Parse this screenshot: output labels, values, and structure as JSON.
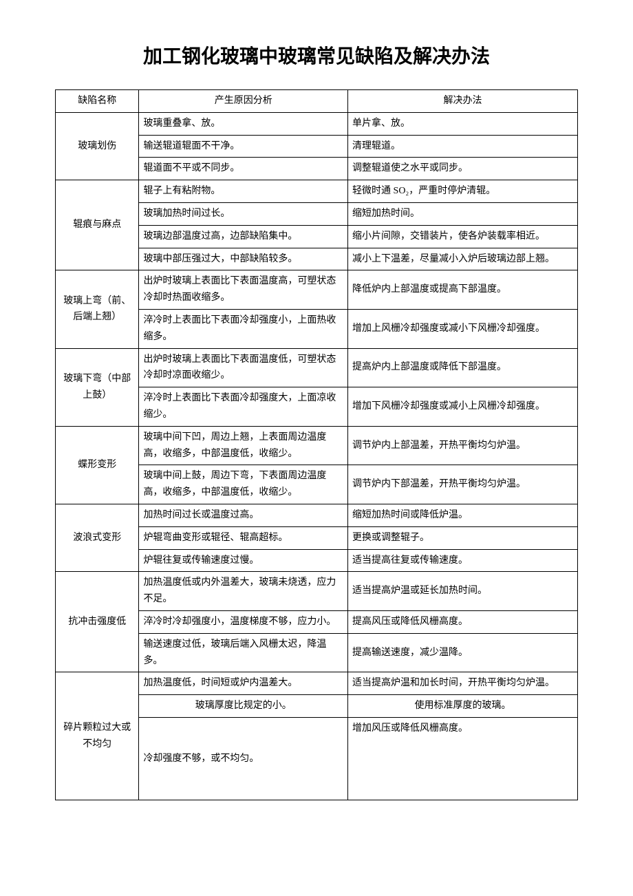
{
  "title": "加工钢化玻璃中玻璃常见缺陷及解决办法",
  "headers": {
    "name": "缺陷名称",
    "cause": "产生原因分析",
    "solution": "解决办法"
  },
  "defects": [
    {
      "name": "玻璃划伤",
      "rows": [
        {
          "cause": "玻璃重叠拿、放。",
          "solution": "单片拿、放。"
        },
        {
          "cause": "输送辊道辊面不干净。",
          "solution": "清理辊道。"
        },
        {
          "cause": "辊道面不平或不同步。",
          "solution": "调整辊道使之水平或同步。"
        }
      ]
    },
    {
      "name": "辊痕与麻点",
      "rows": [
        {
          "cause": "辊子上有粘附物。",
          "solution": "轻微时通 SO₂，严重时停炉清辊。"
        },
        {
          "cause": "玻璃加热时间过长。",
          "solution": "缩短加热时间。"
        },
        {
          "cause": "玻璃边部温度过高，边部缺陷集中。",
          "solution": "缩小片间隙，交错装片，使各炉装载率相近。"
        },
        {
          "cause": "玻璃中部压强过大，中部缺陷较多。",
          "solution": "减小上下温差，尽量减小入炉后玻璃边部上翘。"
        }
      ]
    },
    {
      "name": "玻璃上弯（前、后端上翘）",
      "rows": [
        {
          "cause": "出炉时玻璃上表面比下表面温度高，可塑状态冷却时热面收缩多。",
          "solution": "降低炉内上部温度或提高下部温度。"
        },
        {
          "cause": "淬冷时上表面比下表面冷却强度小，上面热收缩多。",
          "solution": "增加上风栅冷却强度或减小下风栅冷却强度。"
        }
      ]
    },
    {
      "name": "玻璃下弯（中部上鼓）",
      "rows": [
        {
          "cause": "出炉时玻璃上表面比下表面温度低，可塑状态冷却时凉面收缩少。",
          "solution": "提高炉内上部温度或降低下部温度。"
        },
        {
          "cause": "淬冷时上表面比下表面冷却强度大，上面凉收缩少。",
          "solution": "增加下风栅冷却强度或减小上风栅冷却强度。"
        }
      ]
    },
    {
      "name": "蝶形变形",
      "rows": [
        {
          "cause": "玻璃中间下凹，周边上翘，上表面周边温度高，收缩多，中部温度低，收缩少。",
          "solution": "调节炉内上部温差，开热平衡均匀炉温。"
        },
        {
          "cause": "玻璃中间上鼓，周边下弯，下表面周边温度高，收缩多，中部温度低，收缩少。",
          "solution": "调节炉内下部温差，开热平衡均匀炉温。"
        }
      ]
    },
    {
      "name": "波浪式变形",
      "rows": [
        {
          "cause": "加热时间过长或温度过高。",
          "solution": "缩短加热时间或降低炉温。"
        },
        {
          "cause": "炉辊弯曲变形或辊径、辊高超标。",
          "solution": "更换或调整辊子。"
        },
        {
          "cause": "炉辊往复或传输速度过慢。",
          "solution": "适当提高往复或传输速度。"
        }
      ]
    },
    {
      "name": "抗冲击强度低",
      "rows": [
        {
          "cause": "加热温度低或内外温差大，玻璃未烧透，应力不足。",
          "solution": "适当提高炉温或延长加热时间。"
        },
        {
          "cause": "淬冷时冷却强度小，温度梯度不够，应力小。",
          "solution": "提高风压或降低风栅高度。"
        },
        {
          "cause": "输送速度过低，玻璃后端入风栅太迟，降温多。",
          "solution": "提高输送速度，减少温降。"
        }
      ]
    },
    {
      "name": "碎片颗粒过大或不均匀",
      "rows": [
        {
          "cause": "加热温度低，时间短或炉内温差大。",
          "solution": "适当提高炉温和加长时间，开热平衡均匀炉温。"
        },
        {
          "cause": "玻璃厚度比规定的小。",
          "solution": "使用标准厚度的玻璃。",
          "center": true
        },
        {
          "cause": "冷却强度不够，或不均匀。",
          "solution": "增加风压或降低风栅高度。",
          "tall": true
        }
      ]
    }
  ]
}
